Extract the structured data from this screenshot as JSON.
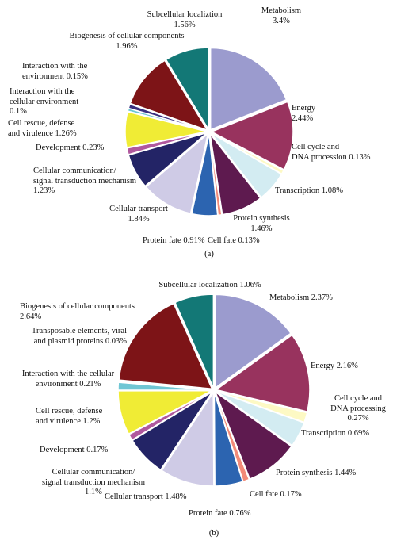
{
  "chart_data": [
    {
      "type": "pie",
      "caption": "(a)",
      "categories": [
        "Metabolism",
        "Energy",
        "Cell cycle and DNA procession",
        "Transcription",
        "Protein synthesis",
        "Cell fate",
        "Protein fate",
        "Cellular transport",
        "Cellular communication/ signal transduction mechanism",
        "Development",
        "Cell rescue, defense and virulence",
        "Interaction with the cellular environment",
        "Interaction with the environment",
        "Biogenesis of cellular components",
        "Subcellular localiztion"
      ],
      "values": [
        3.4,
        2.44,
        0.13,
        1.08,
        1.46,
        0.13,
        0.91,
        1.84,
        1.23,
        0.23,
        1.26,
        0.1,
        0.15,
        1.96,
        1.56
      ],
      "value_labels": [
        "3.4%",
        "2.44%",
        "0.13%",
        "1.08%",
        "1.46%",
        "0.13%",
        "0.91%",
        "1.84%",
        "1.23%",
        "0.23%",
        "1.26%",
        "0.1%",
        "0.15%",
        "1.96%",
        "1.56%"
      ],
      "colors": [
        "#9b9bce",
        "#98335e",
        "#fdf9c4",
        "#d3ecf2",
        "#5e1a4f",
        "#f28a78",
        "#2c64b0",
        "#cfcbe6",
        "#232466",
        "#b0589e",
        "#f0ec35",
        "#6fc6d4",
        "#3a3080",
        "#7d1417",
        "#137876"
      ]
    },
    {
      "type": "pie",
      "caption": "(b)",
      "categories": [
        "Metabolism",
        "Energy",
        "Cell cycle and DNA processing",
        "Transcription",
        "Protein synthesis",
        "Cell fate",
        "Protein fate",
        "Cellular transport",
        "Cellular communication/ signal transduction mechanism",
        "Development",
        "Cell rescue, defense and virulence",
        "Interaction with the cellular environment",
        "Transposable elements, viral and plasmid proteins",
        "Biogenesis of cellular components",
        "Subcellular localization"
      ],
      "values": [
        2.37,
        2.16,
        0.27,
        0.69,
        1.44,
        0.17,
        0.76,
        1.48,
        1.1,
        0.17,
        1.2,
        0.21,
        0.03,
        2.64,
        1.06
      ],
      "value_labels": [
        "2.37%",
        "2.16%",
        "0.27%",
        "0.69%",
        "1.44%",
        "0.17%",
        "0.76%",
        "1.48%",
        "1.1%",
        "0.17%",
        "1.2%",
        "0.21%",
        "0.03%",
        "2.64%",
        "1.06%"
      ],
      "colors": [
        "#9b9bce",
        "#98335e",
        "#fdf9c4",
        "#d3ecf2",
        "#5e1a4f",
        "#f28a78",
        "#2c64b0",
        "#cfcbe6",
        "#232466",
        "#b0589e",
        "#f0ec35",
        "#6fc6d4",
        "#3a3080",
        "#7d1417",
        "#137876"
      ]
    }
  ]
}
